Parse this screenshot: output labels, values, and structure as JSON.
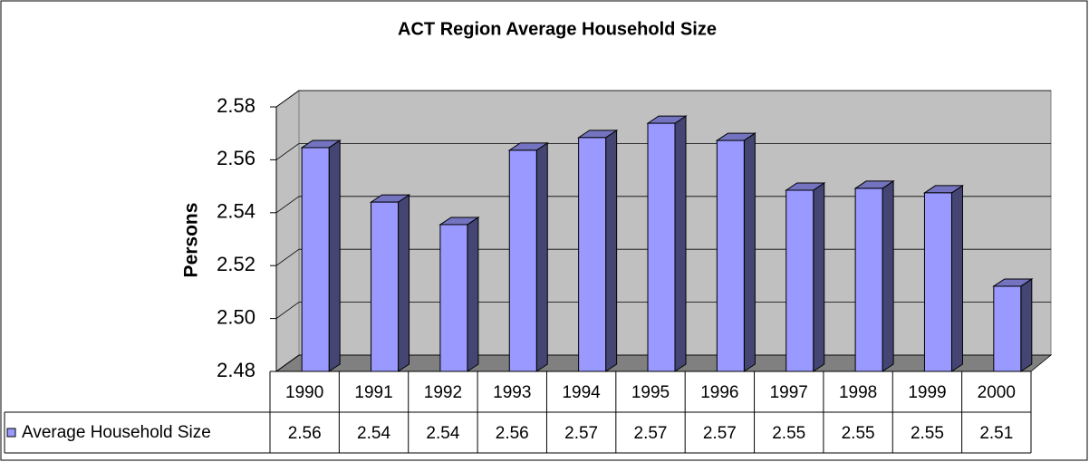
{
  "chart_data": {
    "type": "bar3d",
    "title": "ACT Region Average Household Size",
    "y_label": "Persons",
    "categories": [
      "1990",
      "1991",
      "1992",
      "1993",
      "1994",
      "1995",
      "1996",
      "1997",
      "1998",
      "1999",
      "2000"
    ],
    "series": [
      {
        "name": "Average Household Size",
        "color": "#9999ff",
        "values": [
          2.5646,
          2.544,
          2.5355,
          2.5636,
          2.5684,
          2.5738,
          2.5673,
          2.5485,
          2.5492,
          2.5475,
          2.5122
        ],
        "value_labels": [
          "2.56",
          "2.54",
          "2.54",
          "2.56",
          "2.57",
          "2.57",
          "2.57",
          "2.55",
          "2.55",
          "2.55",
          "2.51"
        ]
      }
    ],
    "ylim": [
      2.48,
      2.58
    ],
    "yticks": [
      2.48,
      {
        "value": 2.5,
        "label": "2.50"
      },
      2.52,
      2.54,
      2.56,
      2.58
    ],
    "grid": true,
    "data_table": true
  }
}
